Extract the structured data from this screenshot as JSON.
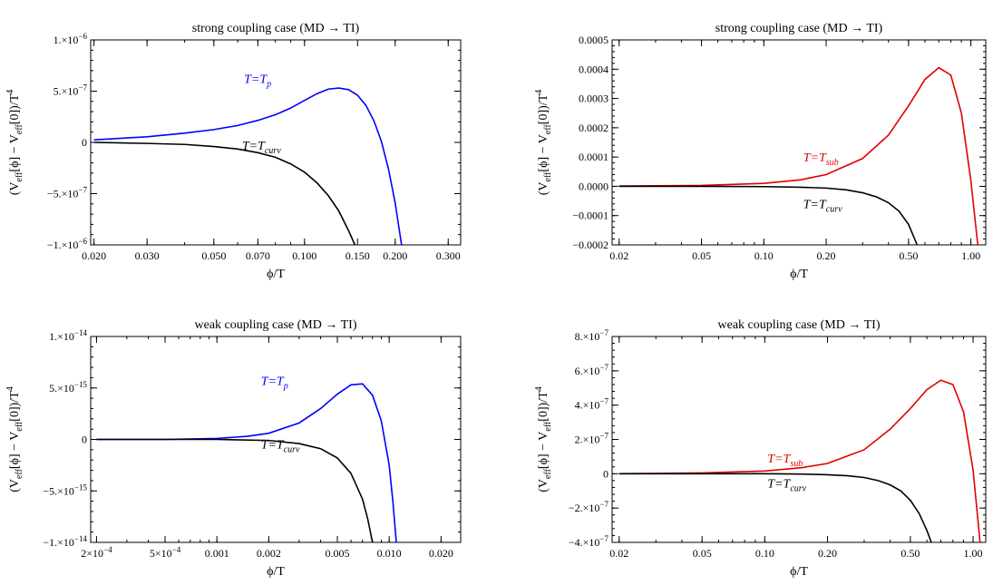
{
  "colors": {
    "blue": "#0000ff",
    "red": "#e00000",
    "black": "#000000"
  },
  "chart_data": [
    {
      "type": "line",
      "title": "strong coupling case (MD → TI)",
      "xlabel": "ϕ/T",
      "ylabel": "(V_eff[ϕ] − V_eff[0])/T^4",
      "xscale": "log",
      "xlim": [
        0.0195,
        0.33
      ],
      "ylim": [
        -1e-06,
        1e-06
      ],
      "xticks": [
        0.02,
        0.03,
        0.05,
        0.07,
        0.1,
        0.15,
        0.2,
        0.3
      ],
      "xtick_labels": [
        "0.020",
        "0.030",
        "0.050",
        "0.070",
        "0.100",
        "0.150",
        "0.200",
        "0.300"
      ],
      "yticks": [
        1e-06,
        5e-07,
        0,
        -5e-07,
        -1e-06
      ],
      "ytick_labels": [
        {
          "m": "1.×10",
          "e": "−6"
        },
        {
          "m": "5.×10",
          "e": "−7"
        },
        {
          "m": "0",
          "e": ""
        },
        {
          "m": "−5.×10",
          "e": "−7"
        },
        {
          "m": "−1.×10",
          "e": "−6"
        }
      ],
      "series": [
        {
          "name": "T=T_p",
          "label_main": "T=T",
          "label_sub": "p",
          "color": "#0000ff",
          "x": [
            0.02,
            0.03,
            0.04,
            0.05,
            0.06,
            0.07,
            0.08,
            0.09,
            0.1,
            0.11,
            0.12,
            0.13,
            0.14,
            0.15,
            0.16,
            0.17,
            0.18,
            0.19,
            0.2,
            0.21
          ],
          "y": [
            2.5e-08,
            5.5e-08,
            9e-08,
            1.25e-07,
            1.65e-07,
            2.15e-07,
            2.7e-07,
            3.35e-07,
            4.1e-07,
            4.75e-07,
            5.2e-07,
            5.3e-07,
            5.15e-07,
            4.6e-07,
            3.6e-07,
            2.1e-07,
            1e-08,
            -2.6e-07,
            -5.9e-07,
            -1e-06
          ]
        },
        {
          "name": "T=T_curv",
          "label_main": "T=T",
          "label_sub": "curv",
          "color": "#000000",
          "x": [
            0.02,
            0.03,
            0.04,
            0.05,
            0.06,
            0.07,
            0.08,
            0.09,
            0.1,
            0.11,
            0.12,
            0.13,
            0.14,
            0.147
          ],
          "y": [
            0,
            -1e-08,
            -2e-08,
            -4e-08,
            -6.5e-08,
            -1e-07,
            -1.45e-07,
            -2.1e-07,
            -2.9e-07,
            -3.95e-07,
            -5.2e-07,
            -6.7e-07,
            -8.6e-07,
            -1e-06
          ]
        }
      ],
      "label_pos": [
        [
          0.063,
          5.8e-07
        ],
        [
          0.062,
          -7e-08
        ]
      ]
    },
    {
      "type": "line",
      "title": "strong coupling case (MD → TI)",
      "xlabel": "ϕ/T",
      "ylabel": "(V_eff[ϕ] − V_eff[0])/T^4",
      "xscale": "log",
      "xlim": [
        0.0185,
        1.18
      ],
      "ylim": [
        -0.0002,
        0.0005
      ],
      "xticks": [
        0.02,
        0.05,
        0.1,
        0.2,
        0.5,
        1.0
      ],
      "xtick_labels": [
        "0.02",
        "0.05",
        "0.10",
        "0.20",
        "0.50",
        "1.00"
      ],
      "yticks": [
        0.0005,
        0.0004,
        0.0003,
        0.0002,
        0.0001,
        0,
        -0.0001,
        -0.0002
      ],
      "ytick_labels": [
        {
          "m": "0.0005",
          "e": ""
        },
        {
          "m": "0.0004",
          "e": ""
        },
        {
          "m": "0.0003",
          "e": ""
        },
        {
          "m": "0.0002",
          "e": ""
        },
        {
          "m": "0.0001",
          "e": ""
        },
        {
          "m": "0.0000",
          "e": ""
        },
        {
          "m": "−0.0001",
          "e": ""
        },
        {
          "m": "−0.0002",
          "e": ""
        }
      ],
      "series": [
        {
          "name": "T=T_sub",
          "label_main": "T=T",
          "label_sub": "sub",
          "color": "#e00000",
          "x": [
            0.02,
            0.05,
            0.1,
            0.15,
            0.2,
            0.3,
            0.4,
            0.5,
            0.6,
            0.7,
            0.8,
            0.9,
            1.0,
            1.08
          ],
          "y": [
            1e-06,
            3e-06,
            1e-05,
            2.2e-05,
            4e-05,
            9.5e-05,
            0.000175,
            0.000275,
            0.000365,
            0.000405,
            0.00038,
            0.00025,
            2e-05,
            -0.0002
          ]
        },
        {
          "name": "T=T_curv",
          "label_main": "T=T",
          "label_sub": "curv",
          "color": "#000000",
          "x": [
            0.02,
            0.05,
            0.1,
            0.15,
            0.2,
            0.25,
            0.3,
            0.35,
            0.4,
            0.45,
            0.5,
            0.55
          ],
          "y": [
            0,
            0,
            -1e-06,
            -3e-06,
            -6e-06,
            -1.2e-05,
            -2.2e-05,
            -3.6e-05,
            -5.6e-05,
            -8.5e-05,
            -0.00013,
            -0.0002
          ]
        }
      ],
      "label_pos": [
        [
          0.155,
          8.5e-05
        ],
        [
          0.155,
          -7.5e-05
        ]
      ]
    },
    {
      "type": "line",
      "title": "weak coupling case (MD → TI)",
      "xlabel": "ϕ/T",
      "ylabel": "(V_eff[ϕ] − V_eff[0])/T^4",
      "xscale": "log",
      "xlim": [
        0.000185,
        0.026
      ],
      "ylim": [
        -1e-14,
        1e-14
      ],
      "xticks": [
        0.0002,
        0.0005,
        0.001,
        0.002,
        0.005,
        0.01,
        0.02
      ],
      "xtick_labels": [
        {
          "m": "2×10",
          "e": "−4"
        },
        {
          "m": "5×10",
          "e": "−4"
        },
        {
          "m": "0.001",
          "e": ""
        },
        {
          "m": "0.002",
          "e": ""
        },
        {
          "m": "0.005",
          "e": ""
        },
        {
          "m": "0.010",
          "e": ""
        },
        {
          "m": "0.020",
          "e": ""
        }
      ],
      "yticks": [
        1e-14,
        5e-15,
        0,
        -5e-15,
        -1e-14
      ],
      "ytick_labels": [
        {
          "m": "1.×10",
          "e": "−14"
        },
        {
          "m": "5.×10",
          "e": "−15"
        },
        {
          "m": "0",
          "e": ""
        },
        {
          "m": "−5.×10",
          "e": "−15"
        },
        {
          "m": "−1.×10",
          "e": "−14"
        }
      ],
      "series": [
        {
          "name": "T=T_p",
          "label_main": "T=T",
          "label_sub": "p",
          "color": "#0000ff",
          "x": [
            0.0002,
            0.0005,
            0.001,
            0.0015,
            0.002,
            0.003,
            0.004,
            0.005,
            0.006,
            0.007,
            0.008,
            0.009,
            0.01,
            0.0105,
            0.011
          ],
          "y": [
            0,
            0,
            1e-16,
            3e-16,
            6e-16,
            1.6e-15,
            3e-15,
            4.4e-15,
            5.3e-15,
            5.4e-15,
            4.3e-15,
            1.8e-15,
            -2.5e-15,
            -6e-15,
            -1e-14
          ]
        },
        {
          "name": "T=T_curv",
          "label_main": "T=T",
          "label_sub": "curv",
          "color": "#000000",
          "x": [
            0.0002,
            0.0005,
            0.001,
            0.002,
            0.003,
            0.004,
            0.005,
            0.006,
            0.007,
            0.0075,
            0.008
          ],
          "y": [
            0,
            0,
            0,
            -1e-16,
            -4e-16,
            -9e-16,
            -1.8e-15,
            -3.3e-15,
            -5.8e-15,
            -7.7e-15,
            -1e-14
          ]
        }
      ],
      "label_pos": [
        [
          0.0018,
          5.3e-15
        ],
        [
          0.0018,
          -9e-16
        ]
      ]
    },
    {
      "type": "line",
      "title": "weak coupling case (MD → TI)",
      "xlabel": "ϕ/T",
      "ylabel": "(V_eff[ϕ] − V_eff[0])/T^4",
      "xscale": "log",
      "xlim": [
        0.0185,
        1.15
      ],
      "ylim": [
        -4e-07,
        8e-07
      ],
      "xticks": [
        0.02,
        0.05,
        0.1,
        0.2,
        0.5,
        1.0
      ],
      "xtick_labels": [
        "0.02",
        "0.05",
        "0.10",
        "0.20",
        "0.50",
        "1.00"
      ],
      "yticks": [
        8e-07,
        6e-07,
        4e-07,
        2e-07,
        0,
        -2e-07,
        -4e-07
      ],
      "ytick_labels": [
        {
          "m": "8.×10",
          "e": "−7"
        },
        {
          "m": "6.×10",
          "e": "−7"
        },
        {
          "m": "4.×10",
          "e": "−7"
        },
        {
          "m": "2.×10",
          "e": "−7"
        },
        {
          "m": "0",
          "e": ""
        },
        {
          "m": "−2.×10",
          "e": "−7"
        },
        {
          "m": "−4.×10",
          "e": "−7"
        }
      ],
      "series": [
        {
          "name": "T=T_sub",
          "label_main": "T=T",
          "label_sub": "sub",
          "color": "#e00000",
          "x": [
            0.02,
            0.05,
            0.1,
            0.15,
            0.2,
            0.3,
            0.4,
            0.5,
            0.6,
            0.7,
            0.8,
            0.9,
            1.0,
            1.08
          ],
          "y": [
            0,
            5e-09,
            1.6e-08,
            3.5e-08,
            6e-08,
            1.4e-07,
            2.6e-07,
            3.8e-07,
            4.9e-07,
            5.45e-07,
            5.2e-07,
            3.6e-07,
            2e-08,
            -4e-07
          ]
        },
        {
          "name": "T=T_curv",
          "label_main": "T=T",
          "label_sub": "curv",
          "color": "#000000",
          "x": [
            0.02,
            0.05,
            0.1,
            0.15,
            0.2,
            0.25,
            0.3,
            0.35,
            0.4,
            0.45,
            0.5,
            0.55,
            0.6,
            0.63
          ],
          "y": [
            0,
            0,
            0,
            -2e-09,
            -6e-09,
            -1.2e-08,
            -2.2e-08,
            -4e-08,
            -6.5e-08,
            -1e-07,
            -1.55e-07,
            -2.3e-07,
            -3.3e-07,
            -4e-07
          ]
        }
      ],
      "label_pos": [
        [
          0.103,
          6.5e-08
        ],
        [
          0.103,
          -8e-08
        ]
      ]
    }
  ]
}
